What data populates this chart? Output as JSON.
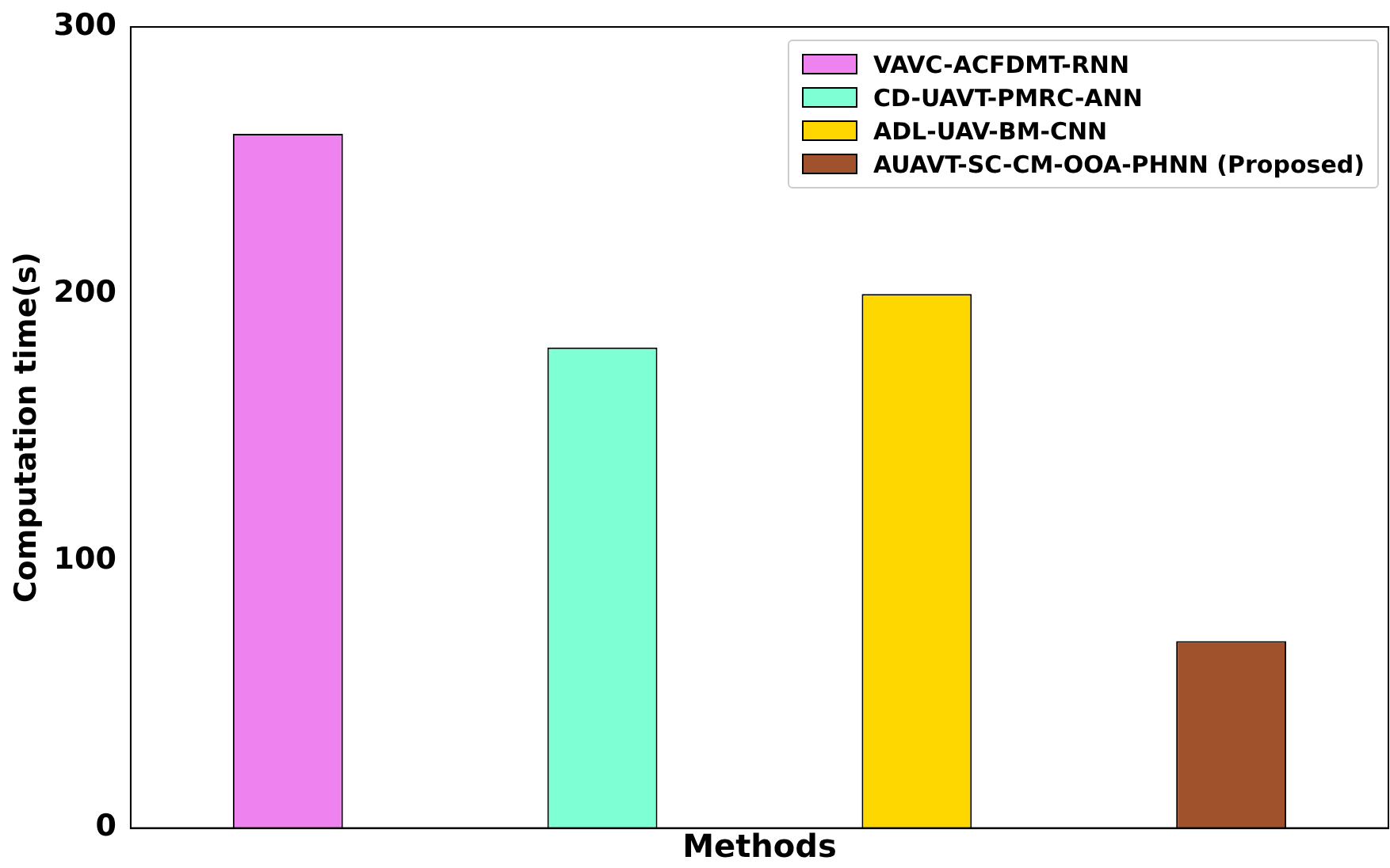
{
  "chart_data": {
    "type": "bar",
    "xlabel": "Methods",
    "ylabel": "Computation time(s)",
    "categories": [
      null,
      null,
      null,
      null
    ],
    "series": [
      {
        "name": "VAVC-ACFDMT-RNN",
        "color": "#ee82ee",
        "values": [
          260,
          null,
          null,
          null
        ]
      },
      {
        "name": "CD-UAVT-PMRC-ANN",
        "color": "#7fffd4",
        "values": [
          null,
          180,
          null,
          null
        ]
      },
      {
        "name": "ADL-UAV-BM-CNN",
        "color": "#ffd700",
        "values": [
          null,
          null,
          200,
          null
        ]
      },
      {
        "name": "AUAVT-SC-CM-OOA-PHNN (Proposed)",
        "color": "#a0522d",
        "values": [
          null,
          null,
          null,
          70
        ]
      }
    ],
    "ylim": [
      0,
      300
    ],
    "yticks": [
      0,
      100,
      200,
      300
    ],
    "grid": false,
    "legend": "top right"
  }
}
